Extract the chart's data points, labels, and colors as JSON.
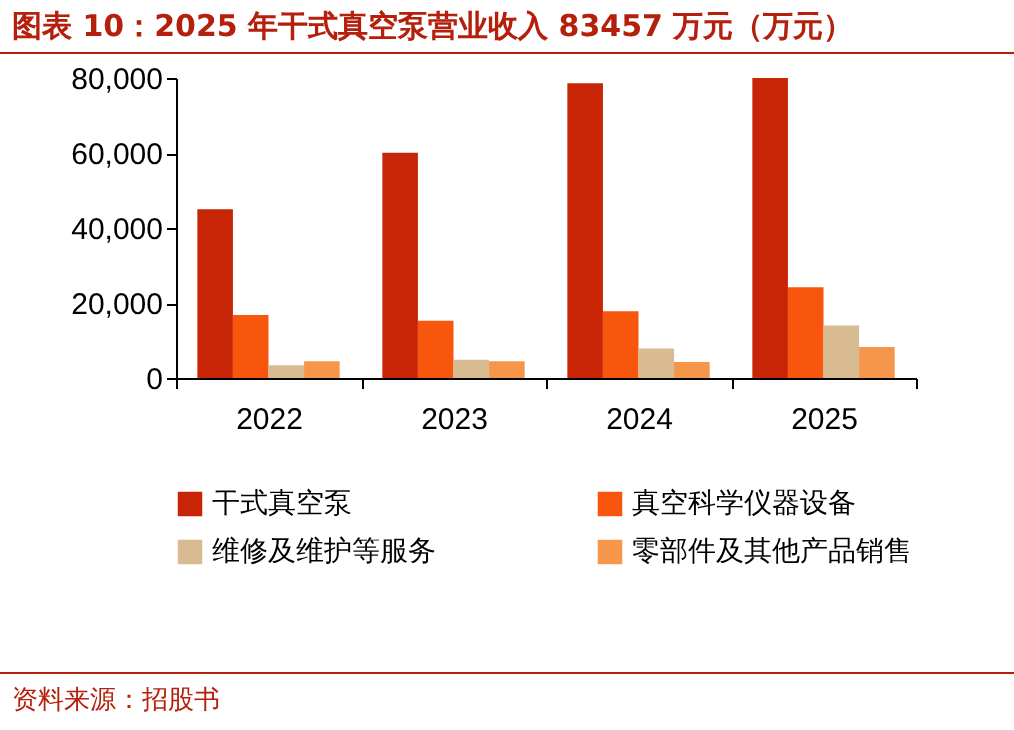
{
  "chart_data": {
    "type": "bar",
    "title": "图表 10：2025 年干式真空泵营业收入 83457 万元（万元）",
    "categories": [
      "2022",
      "2023",
      "2024",
      "2025"
    ],
    "series": [
      {
        "name": "干式真空泵",
        "color": "#c82506",
        "values": [
          45000,
          60100,
          78600,
          80000
        ]
      },
      {
        "name": "真空科学仪器设备",
        "color": "#f8560c",
        "values": [
          16800,
          15300,
          17800,
          24200
        ]
      },
      {
        "name": "维修及维护等服务",
        "color": "#d9bb91",
        "values": [
          3400,
          4900,
          7900,
          14000
        ]
      },
      {
        "name": "零部件及其他产品销售",
        "color": "#f5964a",
        "values": [
          4500,
          4500,
          4300,
          8300
        ]
      }
    ],
    "ylim": [
      0,
      80000
    ],
    "yticks": [
      0,
      {
        "value": 20000,
        "label": "20,000"
      },
      {
        "value": 40000,
        "label": "40,000"
      },
      {
        "value": 60000,
        "label": "60,000"
      },
      {
        "value": 80000,
        "label": "80,000"
      }
    ],
    "grid": false,
    "legend": "bottom",
    "annotations": [
      "资料来源：招股书"
    ]
  }
}
